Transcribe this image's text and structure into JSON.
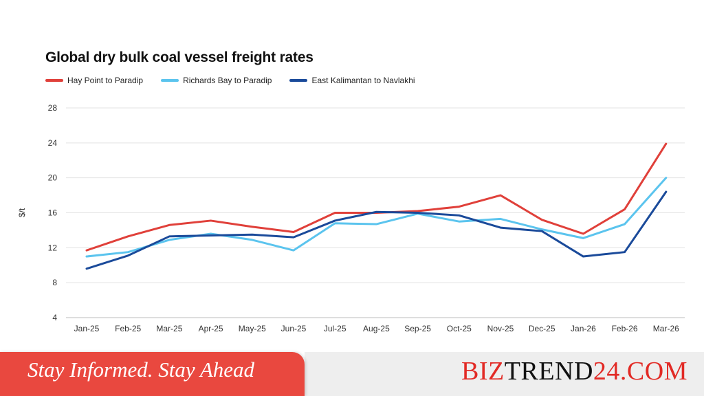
{
  "chart_data": {
    "type": "line",
    "title": "Global dry bulk coal vessel freight rates",
    "ylabel": "$/t",
    "xlabel": "",
    "ylim": [
      4,
      28
    ],
    "yticks": [
      4,
      8,
      12,
      16,
      20,
      24,
      28
    ],
    "grid": true,
    "legend_position": "top-left",
    "categories": [
      "Jan-25",
      "Feb-25",
      "Mar-25",
      "Apr-25",
      "May-25",
      "Jun-25",
      "Jul-25",
      "Aug-25",
      "Sep-25",
      "Oct-25",
      "Nov-25",
      "Dec-25",
      "Jan-26",
      "Feb-26",
      "Mar-26"
    ],
    "series": [
      {
        "name": "Hay Point to Paradip",
        "color": "#e0403a",
        "values": [
          11.7,
          13.3,
          14.6,
          15.1,
          14.4,
          13.8,
          16.0,
          16.0,
          16.2,
          16.7,
          18.0,
          15.2,
          13.6,
          16.4,
          23.9
        ]
      },
      {
        "name": "Richards Bay to Paradip",
        "color": "#5bc4ee",
        "values": [
          11.0,
          11.5,
          12.9,
          13.6,
          12.9,
          11.7,
          14.8,
          14.7,
          15.9,
          15.0,
          15.3,
          14.1,
          13.1,
          14.7,
          20.0
        ]
      },
      {
        "name": "East Kalimantan to Navlakhi",
        "color": "#1a4a9a",
        "values": [
          9.6,
          11.1,
          13.3,
          13.4,
          13.5,
          13.2,
          15.1,
          16.1,
          16.0,
          15.7,
          14.3,
          13.9,
          11.0,
          11.5,
          18.4
        ]
      }
    ]
  },
  "footer": {
    "tagline": "Stay Informed. Stay Ahead",
    "brand_part1": "BIZ",
    "brand_part2": "TREND",
    "brand_part3": "24.COM"
  }
}
